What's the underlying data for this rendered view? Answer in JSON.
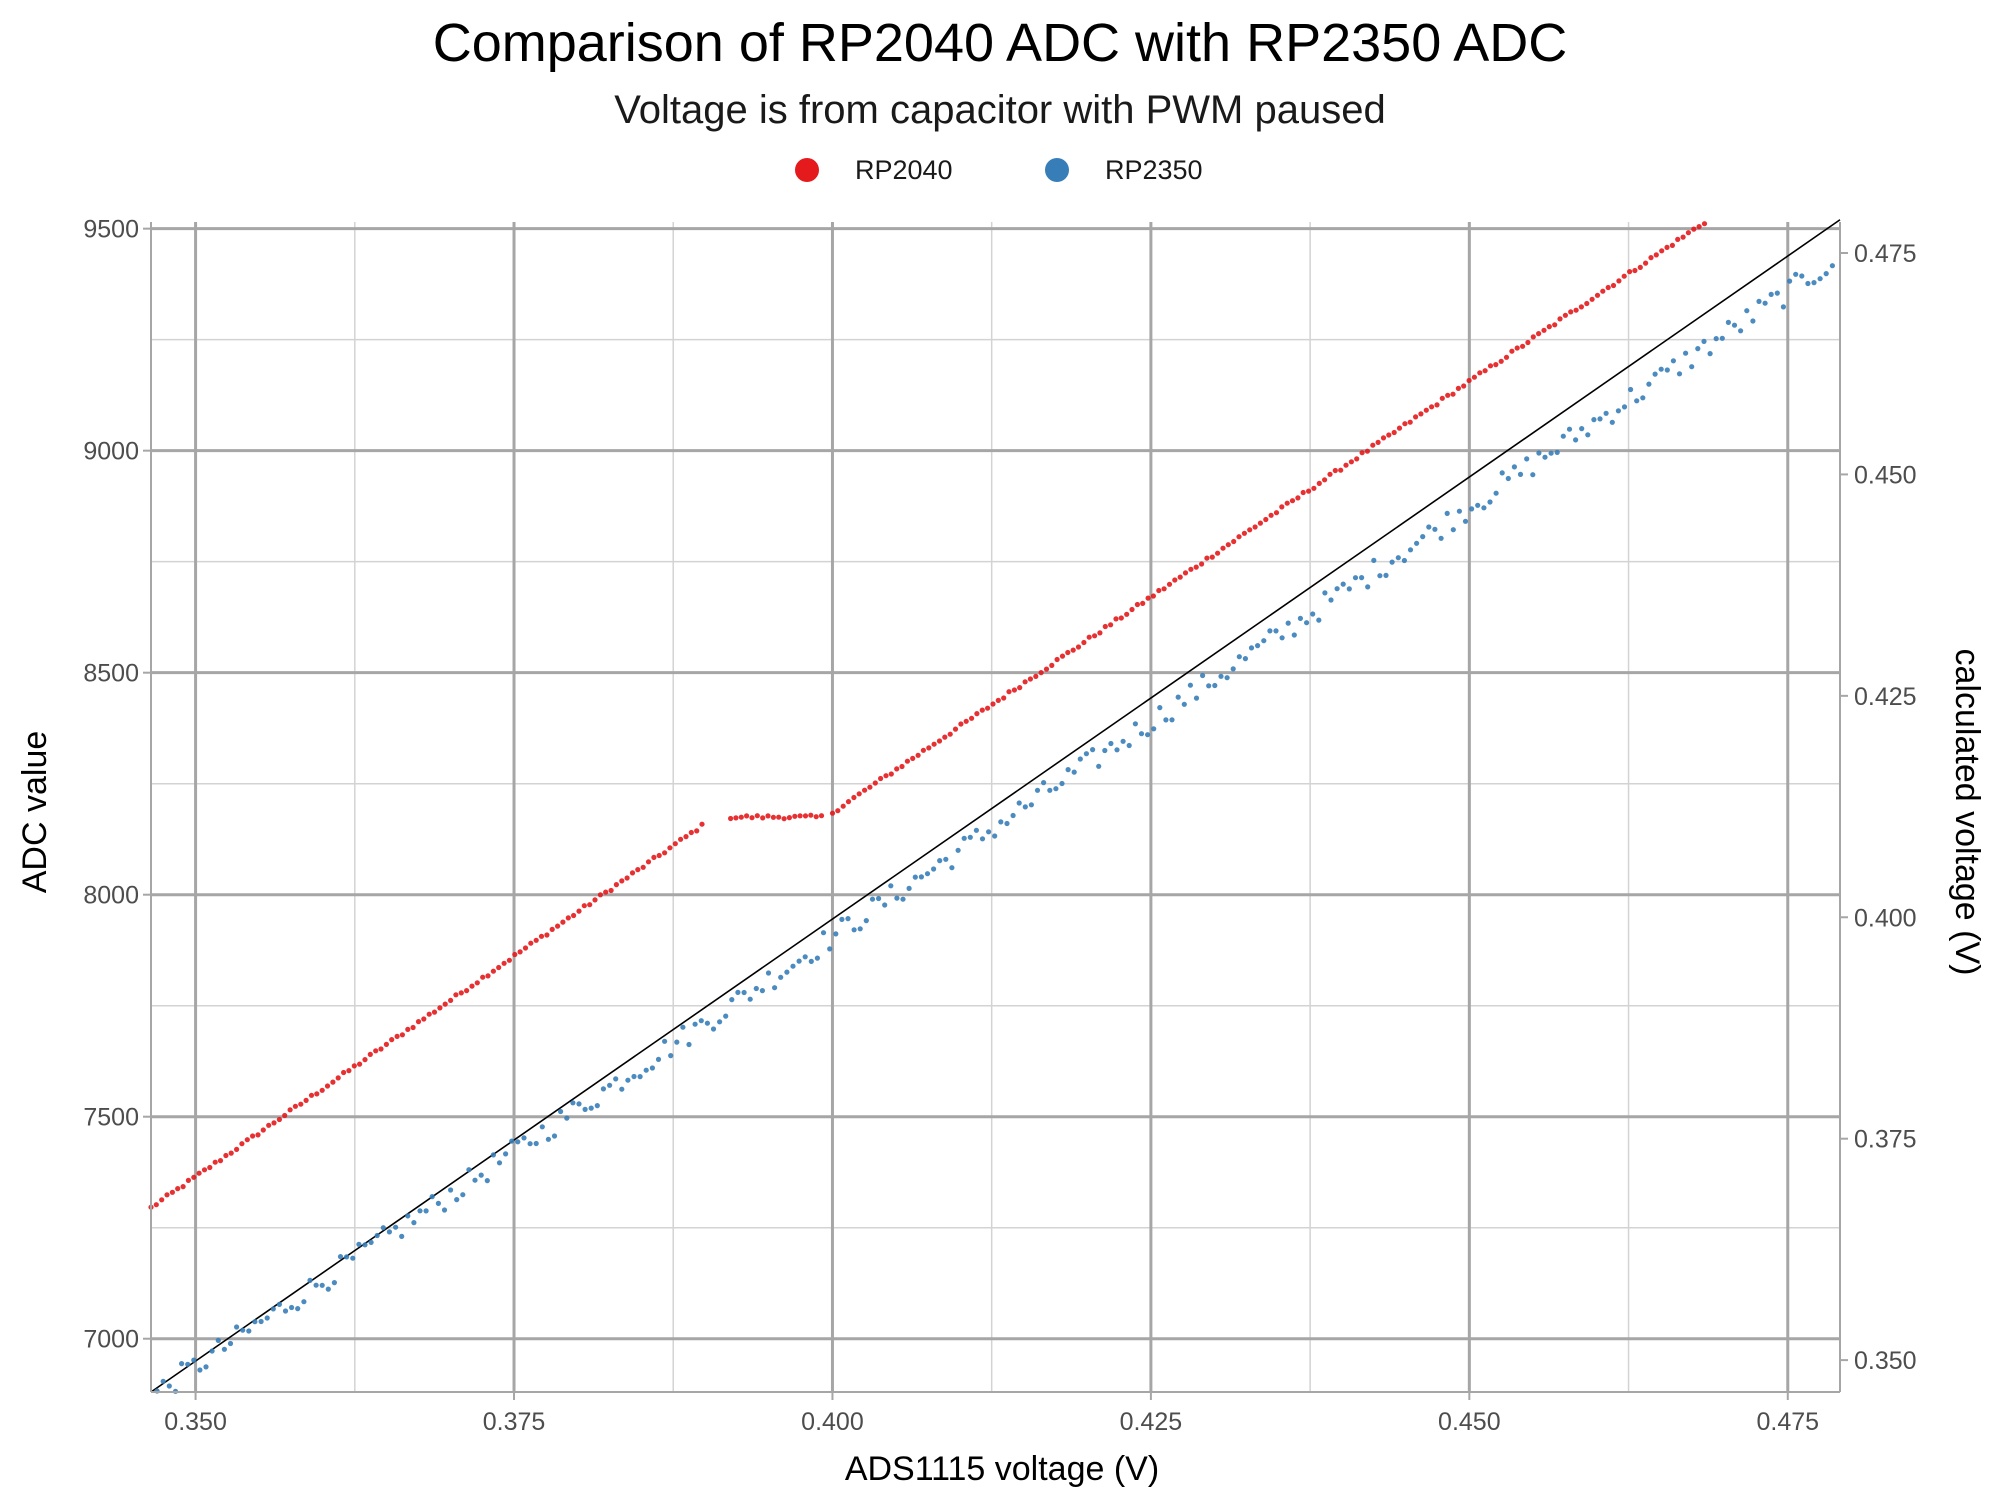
{
  "chart_data": {
    "type": "scatter",
    "title": "Comparison of RP2040 ADC with RP2350 ADC",
    "subtitle": "Voltage is from capacitor with PWM paused",
    "xlabel": "ADS1115 voltage (V)",
    "ylabel": "ADC value",
    "y2label": "calculated voltage (V)",
    "xlim": [
      0.3465,
      0.4791
    ],
    "ylim": [
      6880,
      9515
    ],
    "y2lim": [
      0.3464,
      0.4785
    ],
    "x_ticks": [
      "0.350",
      "0.375",
      "0.400",
      "0.425",
      "0.450",
      "0.475"
    ],
    "y_ticks": [
      "7000",
      "7500",
      "8000",
      "8500",
      "9000",
      "9500"
    ],
    "y2_ticks": [
      "0.350",
      "0.375",
      "0.400",
      "0.425",
      "0.450",
      "0.475"
    ],
    "grid": true,
    "legend_position": "top",
    "reference_line": {
      "x": [
        0.3465,
        0.4791
      ],
      "y": [
        6880,
        9520
      ],
      "color": "#000000"
    },
    "series": [
      {
        "name": "RP2040",
        "color": "#e41a1c",
        "segments": [
          {
            "x": [
              0.3465,
              0.39
            ],
            "y": [
              7295,
              8160
            ]
          },
          {
            "x": [
              0.392,
              0.3995
            ],
            "y": [
              8175,
              8175
            ]
          },
          {
            "x": [
              0.4,
              0.4685
            ],
            "y": [
              8185,
              9515
            ]
          }
        ]
      },
      {
        "name": "RP2350",
        "color": "#377eb8",
        "segments": [
          {
            "x": [
              0.3465,
              0.4785
            ],
            "y": [
              6870,
              9425
            ]
          }
        ]
      }
    ]
  }
}
